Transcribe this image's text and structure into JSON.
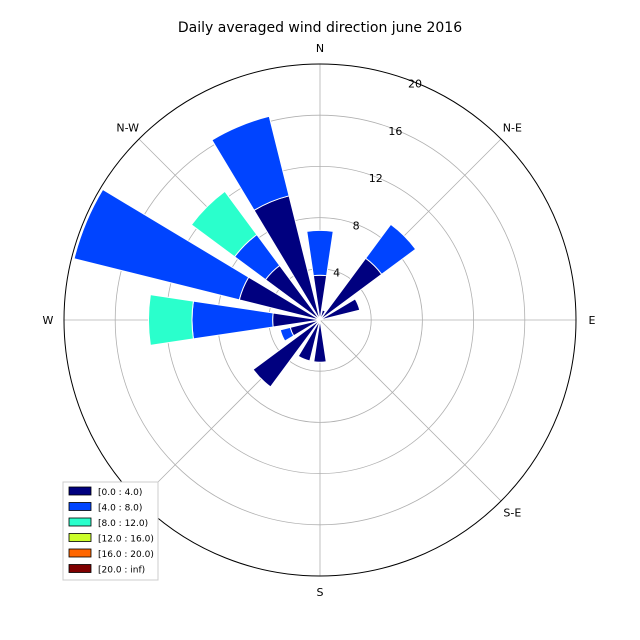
{
  "chart_data": {
    "type": "windrose",
    "title": "Daily averaged wind direction june 2016",
    "r_max": 20,
    "r_ticks": [
      4,
      8,
      12,
      16,
      20
    ],
    "directions": [
      "N",
      "N-E",
      "E",
      "S-E",
      "S",
      "S-W",
      "W",
      "N-W"
    ],
    "bins": [
      {
        "label": "[0.0 : 4.0)",
        "color": "#00007f"
      },
      {
        "label": "[4.0 : 8.0)",
        "color": "#0044ff"
      },
      {
        "label": "[8.0 : 12.0)",
        "color": "#2affcc"
      },
      {
        "label": "[12.0 : 16.0)",
        "color": "#ccff2a"
      },
      {
        "label": "[16.0 : 20.0)",
        "color": "#ff6600"
      },
      {
        "label": "[20.0 : inf)",
        "color": "#7f0000"
      }
    ],
    "sectors": [
      {
        "direction_deg": 0,
        "cumulative": [
          3.5,
          7.0
        ]
      },
      {
        "direction_deg": 22.5,
        "cumulative": [
          0.8
        ]
      },
      {
        "direction_deg": 45,
        "cumulative": [
          6.0,
          9.3
        ]
      },
      {
        "direction_deg": 67.5,
        "cumulative": [
          3.2
        ]
      },
      {
        "direction_deg": 90,
        "cumulative": [
          0.0
        ]
      },
      {
        "direction_deg": 112.5,
        "cumulative": [
          0.0
        ]
      },
      {
        "direction_deg": 135,
        "cumulative": [
          0.0
        ]
      },
      {
        "direction_deg": 157.5,
        "cumulative": [
          0.0
        ]
      },
      {
        "direction_deg": 180,
        "cumulative": [
          3.3
        ]
      },
      {
        "direction_deg": 202.5,
        "cumulative": [
          3.3
        ]
      },
      {
        "direction_deg": 225,
        "cumulative": [
          6.5
        ]
      },
      {
        "direction_deg": 247.5,
        "cumulative": [
          2.4,
          3.2
        ]
      },
      {
        "direction_deg": 270,
        "cumulative": [
          3.7,
          10.0,
          13.4
        ]
      },
      {
        "direction_deg": 292.5,
        "cumulative": [
          6.5,
          19.8
        ]
      },
      {
        "direction_deg": 315,
        "cumulative": [
          5.3,
          8.3,
          12.5
        ]
      },
      {
        "direction_deg": 337.5,
        "cumulative": [
          10.0,
          16.4
        ]
      }
    ],
    "legend_position": "lower-left"
  }
}
